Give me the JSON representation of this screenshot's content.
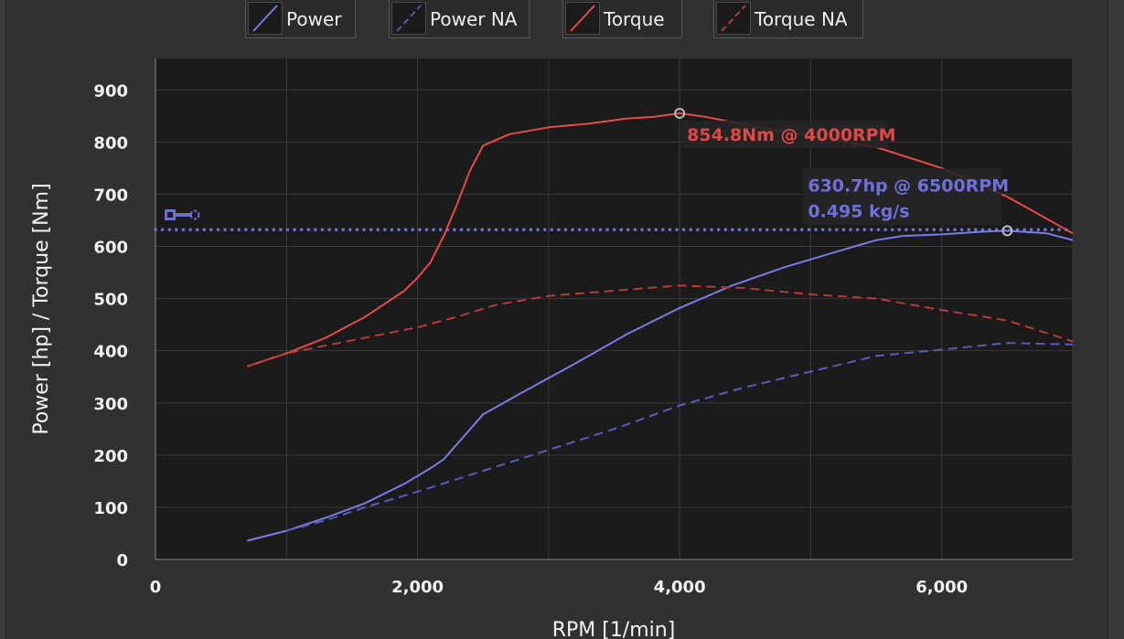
{
  "legend": [
    {
      "label": "Power",
      "color": "#7b7be8",
      "dashed": false
    },
    {
      "label": "Power NA",
      "color": "#5a5ab8",
      "dashed": true
    },
    {
      "label": "Torque",
      "color": "#e84a4a",
      "dashed": false
    },
    {
      "label": "Torque NA",
      "color": "#b83a3a",
      "dashed": true
    }
  ],
  "chart_data": {
    "type": "line",
    "xlabel": "RPM [1/min]",
    "ylabel": "Power [hp] / Torque [Nm]",
    "xlim": [
      0,
      7000
    ],
    "ylim": [
      0,
      960
    ],
    "x_ticks": [
      0,
      2000,
      4000,
      6000
    ],
    "x_tick_labels": [
      "0",
      "2,000",
      "4,000",
      "6,000"
    ],
    "y_ticks": [
      0,
      100,
      200,
      300,
      400,
      500,
      600,
      700,
      800,
      900
    ],
    "grid": true,
    "series": [
      {
        "name": "Power",
        "color": "#7b7be8",
        "dashed": false,
        "x": [
          700,
          1000,
          1300,
          1600,
          1900,
          2100,
          2200,
          2350,
          2500,
          2800,
          3200,
          3600,
          4000,
          4400,
          4800,
          5200,
          5500,
          5700,
          6000,
          6300,
          6500,
          6800,
          7000
        ],
        "y": [
          36,
          55,
          80,
          108,
          145,
          175,
          192,
          235,
          278,
          320,
          375,
          432,
          482,
          525,
          560,
          590,
          612,
          620,
          623,
          628,
          630,
          625,
          612
        ]
      },
      {
        "name": "Power NA",
        "color": "#5a5ab8",
        "dashed": true,
        "x": [
          1000,
          1300,
          1600,
          2000,
          2500,
          3000,
          3500,
          4000,
          4500,
          5000,
          5500,
          6000,
          6500,
          7000
        ],
        "y": [
          55,
          75,
          100,
          130,
          170,
          210,
          250,
          295,
          330,
          360,
          390,
          402,
          415,
          412
        ]
      },
      {
        "name": "Torque",
        "color": "#e84a4a",
        "dashed": false,
        "x": [
          700,
          1000,
          1300,
          1600,
          1900,
          2000,
          2100,
          2200,
          2300,
          2400,
          2500,
          2700,
          3000,
          3300,
          3600,
          3800,
          4000,
          4200,
          4600,
          5000,
          5500,
          6000,
          6500,
          7000
        ],
        "y": [
          370,
          395,
          425,
          465,
          515,
          540,
          570,
          620,
          680,
          745,
          793,
          815,
          828,
          835,
          845,
          848,
          855,
          848,
          828,
          812,
          790,
          750,
          695,
          625
        ]
      },
      {
        "name": "Torque NA",
        "color": "#b83a3a",
        "dashed": true,
        "x": [
          700,
          1000,
          1500,
          2000,
          2300,
          2600,
          3000,
          3500,
          4000,
          4500,
          5000,
          5500,
          6000,
          6500,
          7000
        ],
        "y": [
          370,
          395,
          420,
          445,
          465,
          488,
          505,
          515,
          525,
          520,
          508,
          500,
          478,
          458,
          418
        ]
      }
    ],
    "reference_line": {
      "y": 632,
      "color": "#6f6fd8",
      "dotted": true
    },
    "annotations": [
      {
        "series": "Torque",
        "x": 4000,
        "y": 855,
        "text": "854.8Nm @ 4000RPM",
        "color": "#e04848"
      },
      {
        "series": "Power",
        "x": 6500,
        "y": 630,
        "text": "630.7hp @ 6500RPM",
        "text2": "0.495 kg/s",
        "color": "#7070dd"
      }
    ]
  }
}
